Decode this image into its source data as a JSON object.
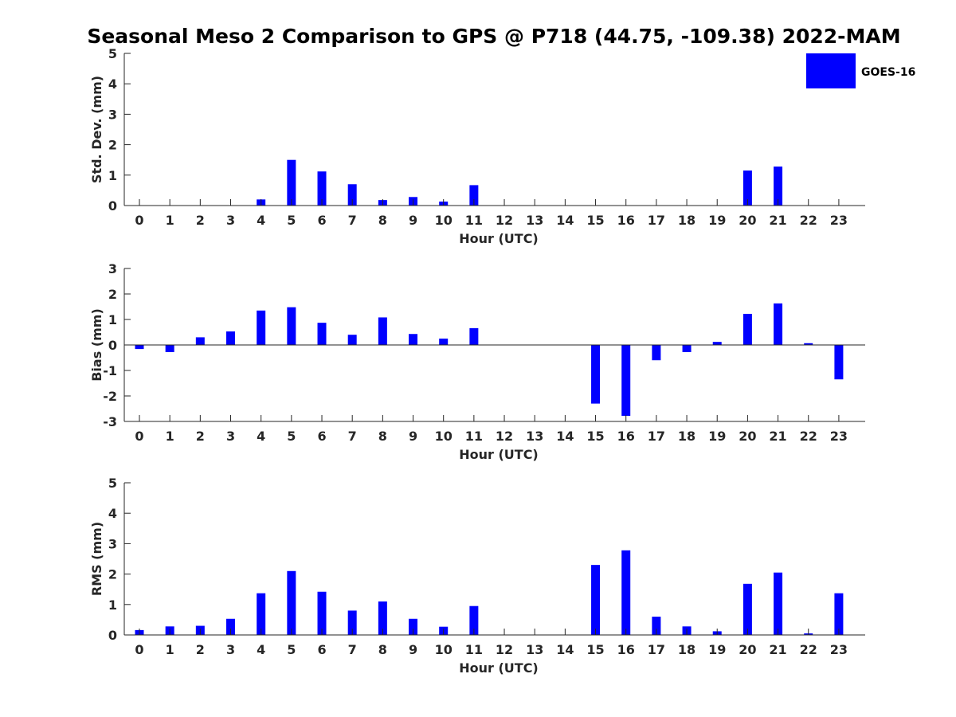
{
  "title": "Seasonal Meso 2 Comparison to GPS @ P718 (44.75, -109.38) 2022-MAM",
  "legend": {
    "label": "GOES-16",
    "color": "#0000ff"
  },
  "colors": {
    "bar": "#0000ff",
    "axis": "#262626"
  },
  "chart_data": [
    {
      "type": "bar",
      "xlabel": "Hour (UTC)",
      "ylabel": "Std. Dev. (mm)",
      "ylim": [
        0,
        5
      ],
      "yticks": [
        0,
        1,
        2,
        3,
        4,
        5
      ],
      "categories": [
        "0",
        "1",
        "2",
        "3",
        "4",
        "5",
        "6",
        "7",
        "8",
        "9",
        "10",
        "11",
        "12",
        "13",
        "14",
        "15",
        "16",
        "17",
        "18",
        "19",
        "20",
        "21",
        "22",
        "23"
      ],
      "series": [
        {
          "name": "GOES-16",
          "values": [
            0,
            0,
            0,
            0,
            0.2,
            1.5,
            1.12,
            0.7,
            0.18,
            0.28,
            0.13,
            0.67,
            0,
            0,
            0,
            0,
            0,
            0,
            0,
            0,
            1.15,
            1.28,
            0,
            0
          ]
        }
      ]
    },
    {
      "type": "bar",
      "xlabel": "Hour (UTC)",
      "ylabel": "Bias (mm)",
      "ylim": [
        -3,
        3
      ],
      "yticks": [
        -3,
        -2,
        -1,
        0,
        1,
        2,
        3
      ],
      "categories": [
        "0",
        "1",
        "2",
        "3",
        "4",
        "5",
        "6",
        "7",
        "8",
        "9",
        "10",
        "11",
        "12",
        "13",
        "14",
        "15",
        "16",
        "17",
        "18",
        "19",
        "20",
        "21",
        "22",
        "23"
      ],
      "series": [
        {
          "name": "GOES-16",
          "values": [
            -0.16,
            -0.28,
            0.3,
            0.53,
            1.35,
            1.48,
            0.87,
            0.4,
            1.08,
            0.43,
            0.25,
            0.66,
            0,
            0,
            0,
            -2.3,
            -2.78,
            -0.6,
            -0.28,
            0.12,
            1.22,
            1.63,
            0.07,
            -1.35
          ]
        }
      ]
    },
    {
      "type": "bar",
      "xlabel": "Hour (UTC)",
      "ylabel": "RMS (mm)",
      "ylim": [
        0,
        5
      ],
      "yticks": [
        0,
        1,
        2,
        3,
        4,
        5
      ],
      "categories": [
        "0",
        "1",
        "2",
        "3",
        "4",
        "5",
        "6",
        "7",
        "8",
        "9",
        "10",
        "11",
        "12",
        "13",
        "14",
        "15",
        "16",
        "17",
        "18",
        "19",
        "20",
        "21",
        "22",
        "23"
      ],
      "series": [
        {
          "name": "GOES-16",
          "values": [
            0.16,
            0.28,
            0.3,
            0.53,
            1.37,
            2.1,
            1.42,
            0.8,
            1.1,
            0.53,
            0.27,
            0.95,
            0,
            0,
            0,
            2.3,
            2.78,
            0.6,
            0.28,
            0.12,
            1.68,
            2.05,
            0.05,
            1.37
          ]
        }
      ]
    }
  ]
}
